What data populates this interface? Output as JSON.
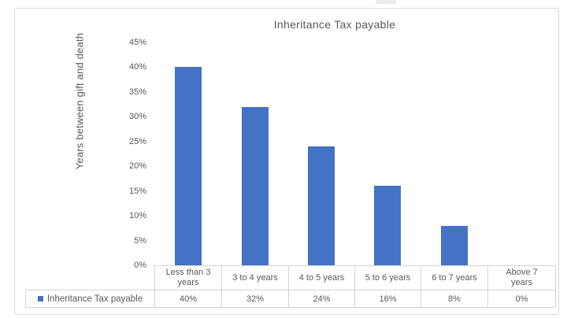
{
  "chart_data": {
    "type": "bar",
    "title": "Inheritance Tax payable",
    "xlabel": "",
    "ylabel": "Years between gift and death",
    "categories": [
      "Less than 3 years",
      "3 to 4 years",
      "4 to 5 years",
      "5 to 6 years",
      "6 to 7 years",
      "Above 7 years"
    ],
    "series": [
      {
        "name": "Inheritance Tax payable",
        "values": [
          40,
          32,
          24,
          16,
          8,
          0
        ]
      }
    ],
    "value_labels": [
      "40%",
      "32%",
      "24%",
      "16%",
      "8%",
      "0%"
    ],
    "y_ticks": [
      "45%",
      "40%",
      "35%",
      "30%",
      "25%",
      "20%",
      "15%",
      "10%",
      "5%",
      "0%"
    ],
    "ylim": [
      0,
      45
    ],
    "grid": false,
    "legend_position": "bottom data table",
    "bar_color": "#4472C4",
    "text_color": "#595959",
    "table_border_color": "#d4d4d4"
  }
}
